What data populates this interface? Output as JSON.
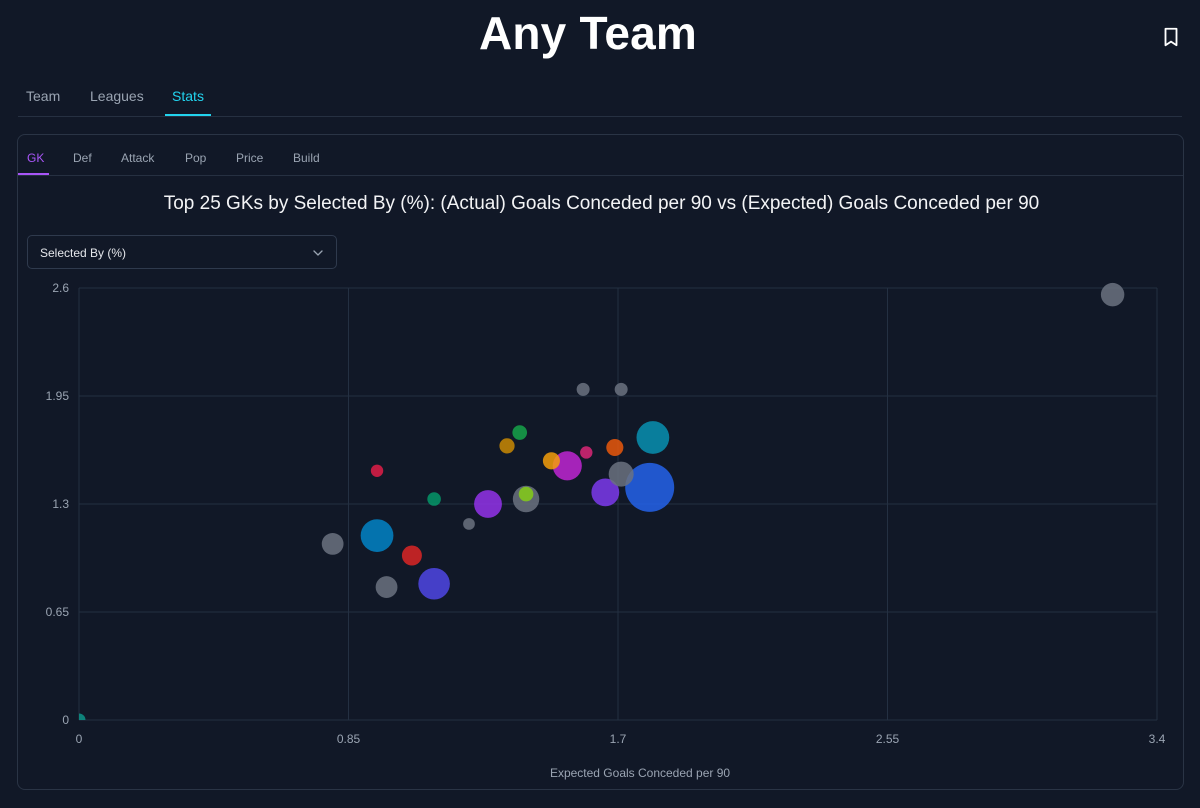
{
  "header": {
    "title": "Any Team",
    "bookmark_icon": "bookmark-icon"
  },
  "nav": {
    "tabs": [
      {
        "label": "Team",
        "active": false
      },
      {
        "label": "Leagues",
        "active": false
      },
      {
        "label": "Stats",
        "active": true
      }
    ]
  },
  "subnav": {
    "tabs": [
      {
        "label": "GK",
        "active": true
      },
      {
        "label": "Def",
        "active": false
      },
      {
        "label": "Attack",
        "active": false
      },
      {
        "label": "Pop",
        "active": false
      },
      {
        "label": "Price",
        "active": false
      },
      {
        "label": "Build",
        "active": false
      }
    ]
  },
  "chart_panel": {
    "title": "Top 25 GKs by Selected By (%): (Actual) Goals Conceded per 90 vs (Expected) Goals Conceded per 90",
    "select": {
      "value": "Selected By (%)",
      "chevron_icon": "chevron-down-icon"
    }
  },
  "chart_data": {
    "type": "scatter",
    "title": "Top 25 GKs by Selected By (%): (Actual) Goals Conceded per 90 vs (Expected) Goals Conceded per 90",
    "xlabel": "Expected Goals Conceded per 90",
    "ylabel": "",
    "xlim": [
      0,
      3.4
    ],
    "ylim": [
      0,
      2.6
    ],
    "xticks": [
      "0",
      "0.85",
      "1.7",
      "2.55",
      "3.4"
    ],
    "yticks": [
      "0",
      "0.65",
      "1.3",
      "1.95",
      "2.6"
    ],
    "grid": true,
    "size_metric": "Selected By (%)",
    "points": [
      {
        "x": 3.26,
        "y": 2.56,
        "size": 3.5,
        "color": "#6b7280"
      },
      {
        "x": 1.59,
        "y": 1.99,
        "size": 1.0,
        "color": "#6b7280"
      },
      {
        "x": 1.71,
        "y": 1.99,
        "size": 1.0,
        "color": "#6b7280"
      },
      {
        "x": 1.81,
        "y": 1.7,
        "size": 7.0,
        "color": "#0891b2"
      },
      {
        "x": 1.8,
        "y": 1.4,
        "size": 16.0,
        "color": "#2563eb"
      },
      {
        "x": 1.69,
        "y": 1.64,
        "size": 1.8,
        "color": "#ea580c"
      },
      {
        "x": 1.71,
        "y": 1.48,
        "size": 4.0,
        "color": "#6b7280"
      },
      {
        "x": 1.66,
        "y": 1.37,
        "size": 5.0,
        "color": "#7c3aed"
      },
      {
        "x": 1.6,
        "y": 1.61,
        "size": 0.9,
        "color": "#db2777"
      },
      {
        "x": 1.54,
        "y": 1.53,
        "size": 5.5,
        "color": "#c026d3"
      },
      {
        "x": 1.49,
        "y": 1.56,
        "size": 1.8,
        "color": "#f59e0b"
      },
      {
        "x": 1.39,
        "y": 1.73,
        "size": 1.3,
        "color": "#16a34a"
      },
      {
        "x": 1.35,
        "y": 1.65,
        "size": 1.4,
        "color": "#ca8a04"
      },
      {
        "x": 1.41,
        "y": 1.36,
        "size": 1.3,
        "color": "#84cc16"
      },
      {
        "x": 1.41,
        "y": 1.33,
        "size": 4.5,
        "color": "#6b7280"
      },
      {
        "x": 1.29,
        "y": 1.3,
        "size": 5.0,
        "color": "#9333ea"
      },
      {
        "x": 1.23,
        "y": 1.18,
        "size": 0.8,
        "color": "#6b7280"
      },
      {
        "x": 1.12,
        "y": 1.33,
        "size": 1.1,
        "color": "#059669"
      },
      {
        "x": 0.94,
        "y": 1.5,
        "size": 0.9,
        "color": "#e11d48"
      },
      {
        "x": 0.94,
        "y": 1.11,
        "size": 7.0,
        "color": "#0284c7"
      },
      {
        "x": 0.8,
        "y": 1.06,
        "size": 3.0,
        "color": "#6b7280"
      },
      {
        "x": 1.05,
        "y": 0.99,
        "size": 2.5,
        "color": "#dc2626"
      },
      {
        "x": 0.97,
        "y": 0.8,
        "size": 3.0,
        "color": "#6b7280"
      },
      {
        "x": 1.12,
        "y": 0.82,
        "size": 6.5,
        "color": "#4f46e5"
      },
      {
        "x": 0.0,
        "y": 0.0,
        "size": 1.0,
        "color": "#0d9488"
      }
    ]
  },
  "colors": {
    "accent_nav": "#22d3ee",
    "accent_subnav": "#a855f7",
    "background": "#111827",
    "grid": "#243042"
  }
}
